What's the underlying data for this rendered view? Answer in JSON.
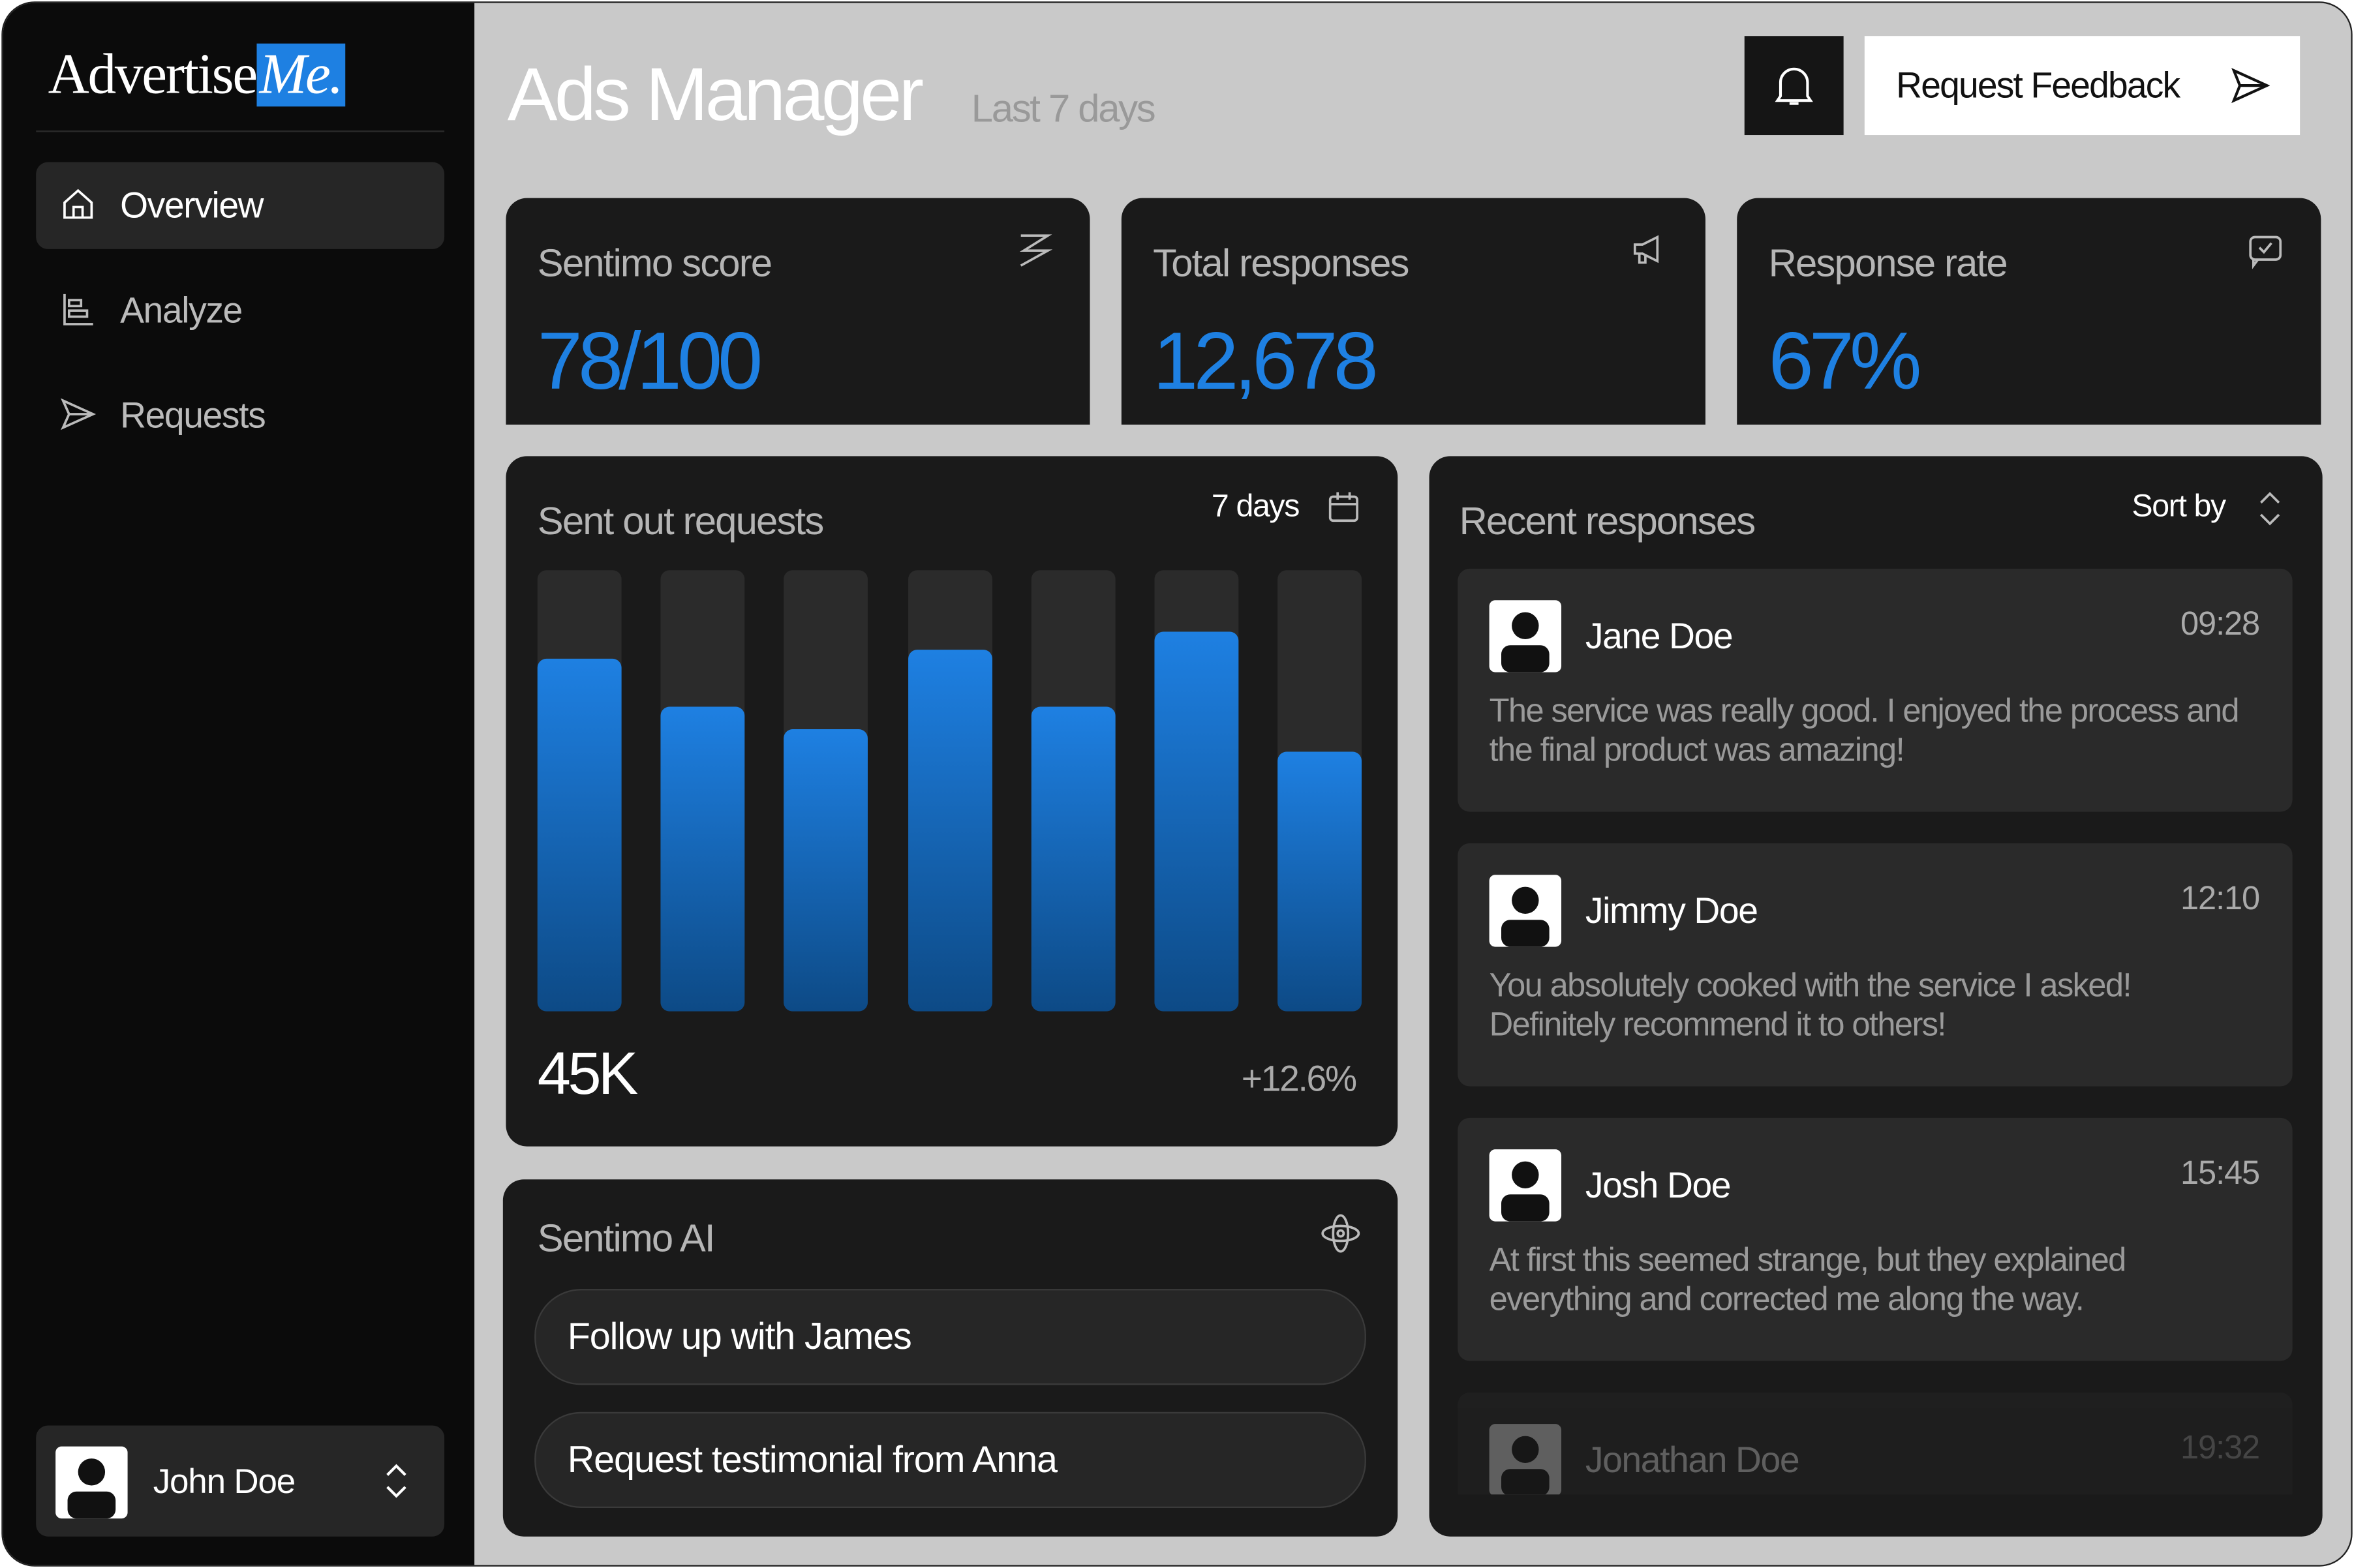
{
  "sidebar": {
    "logo": {
      "main": "Advertise",
      "accent": "Me."
    },
    "nav": [
      "Overview",
      "Analyze",
      "Requests"
    ],
    "user": "John Doe"
  },
  "header": {
    "title": "Ads Manager",
    "subtitle": "Last 7 days",
    "button": "Request Feedback"
  },
  "stats": [
    {
      "label": "Sentimo score",
      "value": "78/100"
    },
    {
      "label": "Total responses",
      "value": "12,678"
    },
    {
      "label": "Response rate",
      "value": "67%"
    }
  ],
  "chart_data": {
    "type": "bar",
    "title": "Sent out requests",
    "period": "7 days",
    "total": "45K",
    "change": "+12.6%",
    "values": [
      80,
      69,
      64,
      82,
      69,
      86,
      59
    ],
    "ylim": [
      0,
      100
    ],
    "color": "#1e80e2"
  },
  "ai": {
    "title": "Sentimo AI",
    "suggestions": [
      "Follow up with James",
      "Request testimonial from Anna"
    ]
  },
  "responses": {
    "title": "Recent responses",
    "sort": "Sort by",
    "items": [
      {
        "name": "Jane Doe",
        "time": "09:28",
        "text": "The service was really good. I enjoyed the process and the final product was amazing!"
      },
      {
        "name": "Jimmy Doe",
        "time": "12:10",
        "text": "You absolutely cooked with the service I asked! Definitely recommend it to others!"
      },
      {
        "name": "Josh Doe",
        "time": "15:45",
        "text": "At first this seemed strange, but they explained everything and corrected me along the way."
      },
      {
        "name": "Jonathan Doe",
        "time": "19:32",
        "text": ""
      }
    ]
  }
}
